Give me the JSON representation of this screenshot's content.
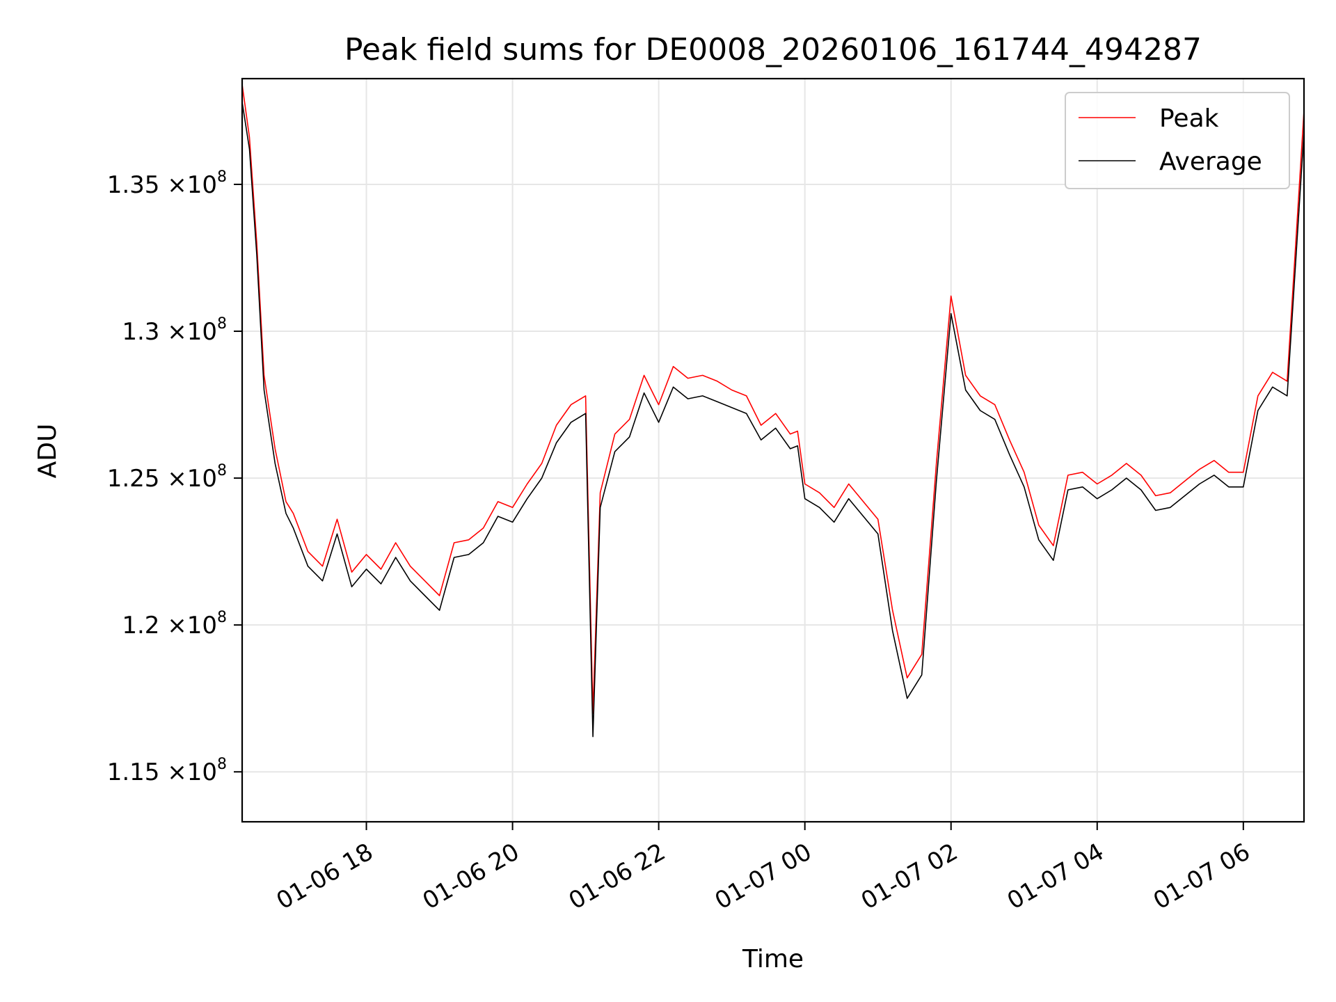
{
  "chart_data": {
    "type": "line",
    "title": "Peak field sums for DE0008_20260106_161744_494287",
    "xlabel": "Time",
    "ylabel": "ADU",
    "x_range_hours": [
      16.3,
      30.83
    ],
    "ylim": [
      113300000,
      138600000
    ],
    "grid": true,
    "legend_position": "upper right",
    "x_ticks": [
      {
        "hour": 18,
        "label": "01-06 18"
      },
      {
        "hour": 20,
        "label": "01-06 20"
      },
      {
        "hour": 22,
        "label": "01-06 22"
      },
      {
        "hour": 24,
        "label": "01-07 00"
      },
      {
        "hour": 26,
        "label": "01-07 02"
      },
      {
        "hour": 28,
        "label": "01-07 04"
      },
      {
        "hour": 30,
        "label": "01-07 06"
      }
    ],
    "y_ticks": [
      {
        "value": 115000000,
        "mantissa": "1.15",
        "exp": "8"
      },
      {
        "value": 120000000,
        "mantissa": "1.2",
        "exp": "8"
      },
      {
        "value": 125000000,
        "mantissa": "1.25",
        "exp": "8"
      },
      {
        "value": 130000000,
        "mantissa": "1.3",
        "exp": "8"
      },
      {
        "value": 135000000,
        "mantissa": "1.35",
        "exp": "8"
      }
    ],
    "times_symbol": "×10",
    "series": [
      {
        "name": "Peak",
        "color": "#ff0000",
        "hours": [
          16.3,
          16.4,
          16.5,
          16.6,
          16.75,
          16.9,
          17.0,
          17.2,
          17.4,
          17.6,
          17.8,
          18.0,
          18.2,
          18.4,
          18.6,
          18.8,
          19.0,
          19.2,
          19.4,
          19.6,
          19.8,
          20.0,
          20.2,
          20.4,
          20.6,
          20.8,
          21.0,
          21.1,
          21.2,
          21.4,
          21.6,
          21.8,
          22.0,
          22.2,
          22.4,
          22.6,
          22.8,
          23.0,
          23.2,
          23.4,
          23.6,
          23.8,
          23.9,
          24.0,
          24.2,
          24.4,
          24.6,
          24.8,
          25.0,
          25.2,
          25.4,
          25.6,
          25.8,
          26.0,
          26.2,
          26.4,
          26.6,
          26.8,
          27.0,
          27.2,
          27.4,
          27.6,
          27.8,
          28.0,
          28.2,
          28.4,
          28.6,
          28.8,
          29.0,
          29.2,
          29.4,
          29.6,
          29.8,
          30.0,
          30.2,
          30.4,
          30.6,
          30.83
        ],
        "values": [
          138400000,
          136600000,
          133000000,
          128500000,
          126000000,
          124200000,
          123800000,
          122500000,
          122000000,
          123600000,
          121800000,
          122400000,
          121900000,
          122800000,
          122000000,
          121500000,
          121000000,
          122800000,
          122900000,
          123300000,
          124200000,
          124000000,
          124800000,
          125500000,
          126800000,
          127500000,
          127800000,
          117000000,
          124500000,
          126500000,
          127000000,
          128500000,
          127500000,
          128800000,
          128400000,
          128500000,
          128300000,
          128000000,
          127800000,
          126800000,
          127200000,
          126500000,
          126600000,
          124800000,
          124500000,
          124000000,
          124800000,
          124200000,
          123600000,
          120500000,
          118200000,
          119000000,
          125500000,
          131200000,
          128500000,
          127800000,
          127500000,
          126300000,
          125200000,
          123400000,
          122700000,
          125100000,
          125200000,
          124800000,
          125100000,
          125500000,
          125100000,
          124400000,
          124500000,
          124900000,
          125300000,
          125600000,
          125200000,
          125200000,
          127800000,
          128600000,
          128300000,
          137500000
        ]
      },
      {
        "name": "Average",
        "color": "#000000",
        "hours": [
          16.3,
          16.4,
          16.5,
          16.6,
          16.75,
          16.9,
          17.0,
          17.2,
          17.4,
          17.6,
          17.8,
          18.0,
          18.2,
          18.4,
          18.6,
          18.8,
          19.0,
          19.2,
          19.4,
          19.6,
          19.8,
          20.0,
          20.2,
          20.4,
          20.6,
          20.8,
          21.0,
          21.1,
          21.2,
          21.4,
          21.6,
          21.8,
          22.0,
          22.2,
          22.4,
          22.6,
          22.8,
          23.0,
          23.2,
          23.4,
          23.6,
          23.8,
          23.9,
          24.0,
          24.2,
          24.4,
          24.6,
          24.8,
          25.0,
          25.2,
          25.4,
          25.6,
          25.8,
          26.0,
          26.2,
          26.4,
          26.6,
          26.8,
          27.0,
          27.2,
          27.4,
          27.6,
          27.8,
          28.0,
          28.2,
          28.4,
          28.6,
          28.8,
          29.0,
          29.2,
          29.4,
          29.6,
          29.8,
          30.0,
          30.2,
          30.4,
          30.6,
          30.83
        ],
        "values": [
          137800000,
          136200000,
          132600000,
          128000000,
          125500000,
          123800000,
          123300000,
          122000000,
          121500000,
          123100000,
          121300000,
          121900000,
          121400000,
          122300000,
          121500000,
          121000000,
          120500000,
          122300000,
          122400000,
          122800000,
          123700000,
          123500000,
          124300000,
          125000000,
          126200000,
          126900000,
          127200000,
          116200000,
          124000000,
          125900000,
          126400000,
          127900000,
          126900000,
          128100000,
          127700000,
          127800000,
          127600000,
          127400000,
          127200000,
          126300000,
          126700000,
          126000000,
          126100000,
          124300000,
          124000000,
          123500000,
          124300000,
          123700000,
          123100000,
          119800000,
          117500000,
          118300000,
          124900000,
          130600000,
          128000000,
          127300000,
          127000000,
          125800000,
          124700000,
          122900000,
          122200000,
          124600000,
          124700000,
          124300000,
          124600000,
          125000000,
          124600000,
          123900000,
          124000000,
          124400000,
          124800000,
          125100000,
          124700000,
          124700000,
          127300000,
          128100000,
          127800000,
          136800000
        ]
      }
    ]
  }
}
